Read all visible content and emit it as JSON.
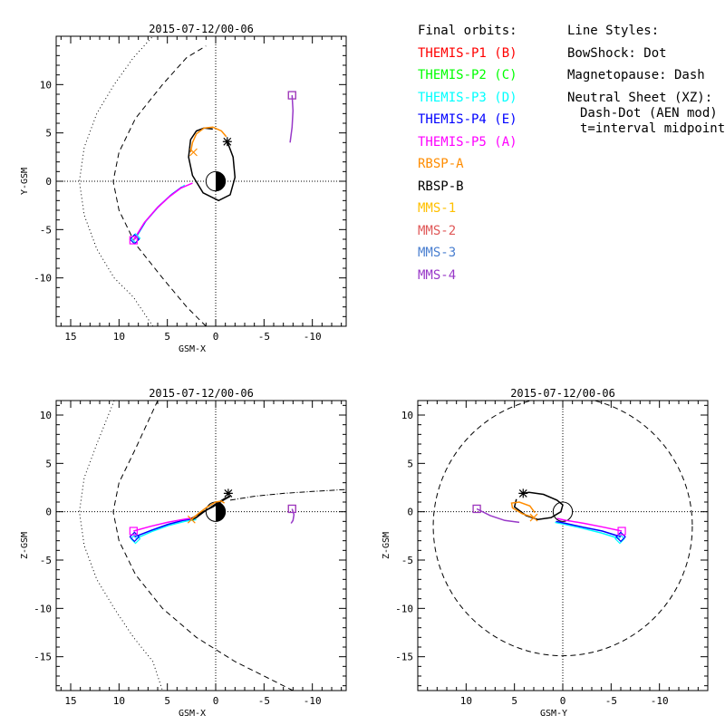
{
  "legend": {
    "orbits_title": "Final orbits:",
    "styles_title": "Line Styles:",
    "entries": [
      {
        "label": "THEMIS-P1 (B)",
        "color": "#ff0000"
      },
      {
        "label": "THEMIS-P2 (C)",
        "color": "#00ff00"
      },
      {
        "label": "THEMIS-P3 (D)",
        "color": "#00ffff"
      },
      {
        "label": "THEMIS-P4 (E)",
        "color": "#0000ff"
      },
      {
        "label": "THEMIS-P5 (A)",
        "color": "#ff00ff"
      },
      {
        "label": "RBSP-A",
        "color": "#ff8c00"
      },
      {
        "label": "RBSP-B",
        "color": "#000000"
      },
      {
        "label": "MMS-1",
        "color": "#ffc000"
      },
      {
        "label": "MMS-2",
        "color": "#e05858"
      },
      {
        "label": "MMS-3",
        "color": "#4a7fd0"
      },
      {
        "label": "MMS-4",
        "color": "#9838c8"
      }
    ],
    "styles": {
      "bowshock": "BowShock: Dot",
      "magnetopause": "Magnetopause: Dash",
      "neutral_sheet": "Neutral Sheet (XZ):",
      "neutral_sheet_detail": "Dash-Dot (AEN mod)",
      "midpoint_note": "t=interval midpoint"
    }
  },
  "chart_data": [
    {
      "id": "xy",
      "type": "line",
      "title": "2015-07-12/00-06",
      "xlabel": "GSM-X",
      "ylabel": "Y-GSM",
      "xlim": [
        16.5,
        -13.5
      ],
      "ylim": [
        15,
        -15
      ],
      "xticks": [
        15,
        10,
        5,
        0,
        -5,
        -10
      ],
      "xtick_labels": [
        "15",
        "10",
        "5",
        "0",
        "-5",
        "-10"
      ],
      "yticks": [
        -10,
        -5,
        0,
        5,
        10
      ],
      "ytick_labels": [
        "-10",
        "-5",
        "0",
        "5",
        "10"
      ],
      "bowshock": [
        [
          6.5,
          -15
        ],
        [
          8.5,
          -12
        ],
        [
          10.5,
          -10
        ],
        [
          12.3,
          -7
        ],
        [
          13.6,
          -3.5
        ],
        [
          14.1,
          0
        ],
        [
          13.6,
          3.5
        ],
        [
          12.3,
          7
        ],
        [
          10.5,
          10
        ],
        [
          8.5,
          12.8
        ],
        [
          6.5,
          15
        ]
      ],
      "magnetopause": [
        [
          1,
          -15
        ],
        [
          3,
          -13
        ],
        [
          5.5,
          -10
        ],
        [
          8.3,
          -6.5
        ],
        [
          10,
          -3
        ],
        [
          10.6,
          0
        ],
        [
          10,
          3
        ],
        [
          8.3,
          6.5
        ],
        [
          5.5,
          10
        ],
        [
          3,
          12.8
        ],
        [
          1,
          14
        ]
      ],
      "series": [
        {
          "name": "THEMIS-P3 (D)",
          "color": "#00ffff",
          "points": [
            [
              8.3,
              -5.9
            ],
            [
              7.2,
              -4.1
            ],
            [
              5.9,
              -2.6
            ],
            [
              4.5,
              -1.3
            ],
            [
              3.2,
              -0.4
            ]
          ]
        },
        {
          "name": "THEMIS-P4 (E)",
          "color": "#0000ff",
          "points": [
            [
              8.4,
              -6.0
            ],
            [
              7.3,
              -4.2
            ],
            [
              6.0,
              -2.7
            ],
            [
              4.7,
              -1.5
            ],
            [
              3.5,
              -0.6
            ]
          ]
        },
        {
          "name": "THEMIS-P5 (A)",
          "color": "#ff00ff",
          "points": [
            [
              8.5,
              -6.1
            ],
            [
              7.4,
              -4.3
            ],
            [
              6.1,
              -2.8
            ],
            [
              4.8,
              -1.6
            ],
            [
              3.6,
              -0.7
            ],
            [
              2.4,
              -0.2
            ]
          ]
        },
        {
          "name": "RBSP-B",
          "color": "#000000",
          "points": [
            [
              -1.2,
              4.1
            ],
            [
              -1.8,
              2.5
            ],
            [
              -2.0,
              0.4
            ],
            [
              -1.5,
              -1.4
            ],
            [
              -0.3,
              -2.0
            ],
            [
              1.3,
              -1.2
            ],
            [
              2.4,
              0.6
            ],
            [
              2.8,
              2.5
            ],
            [
              2.6,
              4.3
            ],
            [
              2.0,
              5.2
            ],
            [
              1.2,
              5.5
            ],
            [
              0.3,
              5.4
            ]
          ]
        },
        {
          "name": "RBSP-A",
          "color": "#ff8c00",
          "points": [
            [
              2.6,
              3.0
            ],
            [
              2.4,
              4.0
            ],
            [
              2.0,
              4.9
            ],
            [
              1.2,
              5.5
            ],
            [
              0.3,
              5.6
            ],
            [
              -0.6,
              5.2
            ],
            [
              -1.1,
              4.6
            ]
          ]
        },
        {
          "name": "MMS-4",
          "color": "#9838c8",
          "points": [
            [
              -7.7,
              4.0
            ],
            [
              -7.9,
              5.6
            ],
            [
              -8.0,
              7.3
            ],
            [
              -7.9,
              8.9
            ]
          ]
        }
      ],
      "markers": [
        {
          "symbol": "diamond",
          "color": "#00ffff",
          "x": 8.3,
          "y": -5.9
        },
        {
          "symbol": "diamond",
          "color": "#0000ff",
          "x": 8.4,
          "y": -6.0
        },
        {
          "symbol": "square",
          "color": "#ff00ff",
          "x": 8.5,
          "y": -6.1
        },
        {
          "symbol": "cross",
          "color": "#ff8c00",
          "x": 2.3,
          "y": 3.0
        },
        {
          "symbol": "asterisk",
          "color": "#000000",
          "x": -1.2,
          "y": 4.1
        },
        {
          "symbol": "square",
          "color": "#e05858",
          "x": -7.9,
          "y": 8.9
        },
        {
          "symbol": "square",
          "color": "#9838c8",
          "x": -7.9,
          "y": 8.9
        }
      ]
    },
    {
      "id": "xz",
      "type": "line",
      "title": "2015-07-12/00-06",
      "xlabel": "GSM-X",
      "ylabel": "Z-GSM",
      "xlim": [
        16.5,
        -13.5
      ],
      "ylim": [
        11.5,
        -18.5
      ],
      "xticks": [
        15,
        10,
        5,
        0,
        -5,
        -10
      ],
      "xtick_labels": [
        "15",
        "10",
        "5",
        "0",
        "-5",
        "-10"
      ],
      "yticks": [
        10,
        5,
        0,
        -5,
        -10,
        -15
      ],
      "ytick_labels": [
        "10",
        "5",
        "0",
        "-5",
        "-10",
        "-15"
      ],
      "bowshock": [
        [
          10.5,
          11.5
        ],
        [
          12.3,
          7
        ],
        [
          13.6,
          3.5
        ],
        [
          14.1,
          0
        ],
        [
          13.6,
          -3.5
        ],
        [
          12.3,
          -7
        ],
        [
          10.5,
          -10
        ],
        [
          8.5,
          -13
        ],
        [
          6.5,
          -15.5
        ],
        [
          5.5,
          -18.5
        ]
      ],
      "magnetopause": [
        [
          6,
          11.5
        ],
        [
          8.3,
          6.5
        ],
        [
          10,
          3
        ],
        [
          10.6,
          0
        ],
        [
          10,
          -3
        ],
        [
          8.3,
          -6.5
        ],
        [
          5.5,
          -10
        ],
        [
          2,
          -13
        ],
        [
          -2,
          -15.5
        ],
        [
          -6,
          -17.5
        ],
        [
          -8,
          -18.5
        ]
      ],
      "neutral_sheet": [
        [
          -1.5,
          1.2
        ],
        [
          -4,
          1.6
        ],
        [
          -7,
          1.9
        ],
        [
          -10,
          2.1
        ],
        [
          -13.5,
          2.3
        ]
      ],
      "series": [
        {
          "name": "THEMIS-P3 (D)",
          "color": "#00ffff",
          "points": [
            [
              8.3,
              -2.8
            ],
            [
              6.5,
              -2.0
            ],
            [
              4.8,
              -1.4
            ],
            [
              3.2,
              -1.0
            ],
            [
              2.0,
              -0.8
            ]
          ]
        },
        {
          "name": "THEMIS-P4 (E)",
          "color": "#0000ff",
          "points": [
            [
              8.4,
              -2.6
            ],
            [
              6.6,
              -1.9
            ],
            [
              4.9,
              -1.3
            ],
            [
              3.4,
              -0.9
            ],
            [
              2.2,
              -0.7
            ]
          ]
        },
        {
          "name": "THEMIS-P5 (A)",
          "color": "#ff00ff",
          "points": [
            [
              8.5,
              -2.0
            ],
            [
              6.7,
              -1.5
            ],
            [
              5.0,
              -1.1
            ],
            [
              3.4,
              -0.8
            ],
            [
              2.2,
              -0.6
            ]
          ]
        },
        {
          "name": "RBSP-B",
          "color": "#000000",
          "points": [
            [
              2.4,
              -0.8
            ],
            [
              2.0,
              -0.6
            ],
            [
              1.2,
              0.0
            ],
            [
              0.0,
              0.8
            ],
            [
              -1.0,
              1.4
            ],
            [
              -1.5,
              1.6
            ],
            [
              -0.8,
              1.2
            ],
            [
              0.3,
              0.5
            ],
            [
              1.5,
              -0.1
            ],
            [
              2.5,
              -0.7
            ]
          ]
        },
        {
          "name": "RBSP-A",
          "color": "#ff8c00",
          "points": [
            [
              2.5,
              -0.8
            ],
            [
              1.8,
              -0.2
            ],
            [
              1.0,
              0.4
            ],
            [
              0.0,
              1.0
            ],
            [
              -0.6,
              1.1
            ],
            [
              -0.9,
              0.9
            ]
          ]
        },
        {
          "name": "MMS-4",
          "color": "#9838c8",
          "points": [
            [
              -7.9,
              0.3
            ],
            [
              -8.1,
              -0.3
            ],
            [
              -8.0,
              -0.9
            ],
            [
              -7.8,
              -1.2
            ]
          ]
        }
      ],
      "markers": [
        {
          "symbol": "diamond",
          "color": "#00ffff",
          "x": 8.3,
          "y": -2.8
        },
        {
          "symbol": "diamond",
          "color": "#0000ff",
          "x": 8.4,
          "y": -2.6
        },
        {
          "symbol": "square",
          "color": "#ff00ff",
          "x": 8.5,
          "y": -2.0
        },
        {
          "symbol": "cross",
          "color": "#ff8c00",
          "x": 2.5,
          "y": -0.8
        },
        {
          "symbol": "asterisk",
          "color": "#000000",
          "x": -1.3,
          "y": 1.9
        },
        {
          "symbol": "square",
          "color": "#e05858",
          "x": -7.9,
          "y": 0.3
        },
        {
          "symbol": "square",
          "color": "#9838c8",
          "x": -7.9,
          "y": 0.3
        }
      ]
    },
    {
      "id": "yz",
      "type": "line",
      "title": "2015-07-12/00-06",
      "xlabel": "GSM-Y",
      "ylabel": "Z-GSM",
      "xlim": [
        15,
        -15
      ],
      "ylim": [
        11.5,
        -18.5
      ],
      "xticks": [
        10,
        5,
        0,
        -5,
        -10
      ],
      "xtick_labels": [
        "10",
        "5",
        "0",
        "-5",
        "-10"
      ],
      "yticks": [
        10,
        5,
        0,
        -5,
        -10,
        -15
      ],
      "ytick_labels": [
        "10",
        "5",
        "0",
        "-5",
        "-10",
        "-15"
      ],
      "magnetopause_circle": {
        "cy": -1.5,
        "r": 13.4
      },
      "series": [
        {
          "name": "THEMIS-P3 (D)",
          "color": "#00ffff",
          "points": [
            [
              -5.9,
              -2.8
            ],
            [
              -4.0,
              -2.2
            ],
            [
              -2.0,
              -1.7
            ],
            [
              -0.2,
              -1.3
            ],
            [
              0.8,
              -1.1
            ]
          ]
        },
        {
          "name": "THEMIS-P4 (E)",
          "color": "#0000ff",
          "points": [
            [
              -6.0,
              -2.6
            ],
            [
              -4.1,
              -2.0
            ],
            [
              -2.1,
              -1.6
            ],
            [
              -0.3,
              -1.2
            ],
            [
              0.7,
              -1.0
            ]
          ]
        },
        {
          "name": "THEMIS-P5 (A)",
          "color": "#ff00ff",
          "points": [
            [
              -6.1,
              -2.0
            ],
            [
              -4.2,
              -1.6
            ],
            [
              -2.2,
              -1.2
            ],
            [
              -0.4,
              -0.9
            ],
            [
              0.6,
              -0.7
            ]
          ]
        },
        {
          "name": "RBSP-B",
          "color": "#000000",
          "points": [
            [
              4.1,
              1.9
            ],
            [
              3.5,
              2.0
            ],
            [
              2.0,
              1.8
            ],
            [
              0.6,
              1.2
            ],
            [
              0.0,
              0.7
            ],
            [
              0.2,
              0.0
            ],
            [
              1.2,
              -0.6
            ],
            [
              2.6,
              -0.8
            ],
            [
              3.8,
              -0.4
            ],
            [
              5.0,
              0.5
            ],
            [
              4.8,
              1.3
            ]
          ]
        },
        {
          "name": "RBSP-A",
          "color": "#ff8c00",
          "points": [
            [
              3.0,
              -0.6
            ],
            [
              4.2,
              -0.2
            ],
            [
              5.2,
              0.4
            ],
            [
              5.3,
              0.9
            ],
            [
              4.5,
              1.0
            ],
            [
              3.4,
              0.6
            ],
            [
              2.9,
              -0.1
            ]
          ]
        },
        {
          "name": "MMS-4",
          "color": "#9838c8",
          "points": [
            [
              8.9,
              0.3
            ],
            [
              7.5,
              -0.4
            ],
            [
              6.0,
              -0.9
            ],
            [
              4.5,
              -1.1
            ]
          ]
        }
      ],
      "markers": [
        {
          "symbol": "diamond",
          "color": "#00ffff",
          "x": -5.9,
          "y": -2.8
        },
        {
          "symbol": "diamond",
          "color": "#0000ff",
          "x": -6.0,
          "y": -2.6
        },
        {
          "symbol": "square",
          "color": "#ff00ff",
          "x": -6.1,
          "y": -2.0
        },
        {
          "symbol": "cross",
          "color": "#ff8c00",
          "x": 3.0,
          "y": -0.6
        },
        {
          "symbol": "asterisk",
          "color": "#000000",
          "x": 4.1,
          "y": 1.9
        },
        {
          "symbol": "square",
          "color": "#e05858",
          "x": 8.9,
          "y": 0.3
        },
        {
          "symbol": "square",
          "color": "#9838c8",
          "x": 8.9,
          "y": 0.3
        }
      ]
    }
  ]
}
